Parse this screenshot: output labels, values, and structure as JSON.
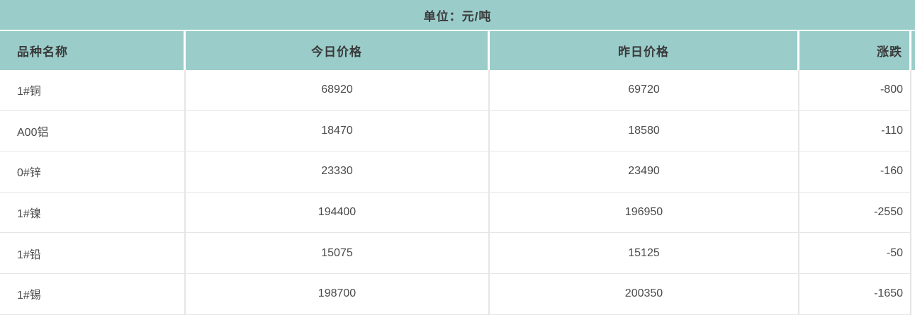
{
  "unit_bar": {
    "label": "单位：元/吨"
  },
  "table": {
    "columns": [
      {
        "key": "name",
        "label": "品种名称",
        "align": "left"
      },
      {
        "key": "today",
        "label": "今日价格",
        "align": "center"
      },
      {
        "key": "yesterday",
        "label": "昨日价格",
        "align": "center"
      },
      {
        "key": "change",
        "label": "涨跌",
        "align": "right"
      }
    ],
    "rows": [
      {
        "name": "1#铜",
        "today": "68920",
        "yesterday": "69720",
        "change": "-800"
      },
      {
        "name": "A00铝",
        "today": "18470",
        "yesterday": "18580",
        "change": "-110"
      },
      {
        "name": "0#锌",
        "today": "23330",
        "yesterday": "23490",
        "change": "-160"
      },
      {
        "name": "1#镍",
        "today": "194400",
        "yesterday": "196950",
        "change": "-2550"
      },
      {
        "name": "1#铅",
        "today": "15075",
        "yesterday": "15125",
        "change": "-50"
      },
      {
        "name": "1#锡",
        "today": "198700",
        "yesterday": "200350",
        "change": "-1650"
      }
    ]
  },
  "chart_data": {
    "type": "table",
    "title": "单位：元/吨",
    "categories": [
      "1#铜",
      "A00铝",
      "0#锌",
      "1#镍",
      "1#铅",
      "1#锡"
    ],
    "series": [
      {
        "name": "今日价格",
        "values": [
          68920,
          18470,
          23330,
          194400,
          15075,
          198700
        ]
      },
      {
        "name": "昨日价格",
        "values": [
          69720,
          18580,
          23490,
          196950,
          15125,
          200350
        ]
      },
      {
        "name": "涨跌",
        "values": [
          -800,
          -110,
          -160,
          -2550,
          -50,
          -1650
        ]
      }
    ]
  },
  "colors": {
    "header_bg": "#9accca",
    "header_text": "#3a3a3a",
    "body_text": "#4a4a4a",
    "grid_line": "#e6e6e6"
  }
}
